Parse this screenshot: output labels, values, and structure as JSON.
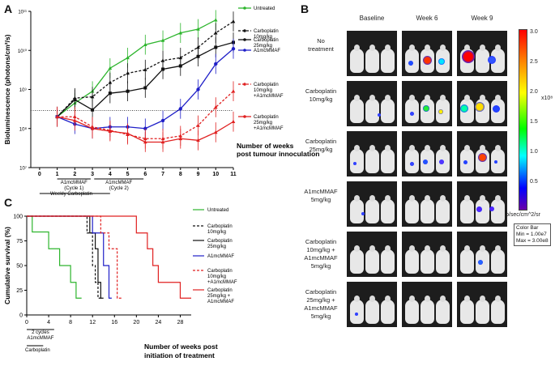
{
  "panels": {
    "a": "A",
    "b": "B",
    "c": "C"
  },
  "chart_data": [
    {
      "type": "line",
      "title": "",
      "xlabel": "Number of weeks\npost tumour innoculation",
      "ylabel": "Bioluminescence (photons/cm²/s)",
      "yscale": "log",
      "ylim": [
        10000000,
        100000000000
      ],
      "yticks": [
        "10⁷",
        "10⁸",
        "10⁹",
        "10¹⁰",
        "10¹¹"
      ],
      "x_ticks": [
        "0",
        "1",
        "2",
        "3",
        "4",
        "5",
        "6",
        "7",
        "8",
        "9",
        "10",
        "11"
      ],
      "dotted_reference_y": 290000000,
      "annotations": {
        "cycle1": "A1mcMMAF\n(Cycle 1)",
        "cycle2": "A1mcMMAF\n(Cycle 2)",
        "weekly": "Weekly Carboplatin"
      },
      "series": [
        {
          "name": "Untreated",
          "color": "#2db52d",
          "dash": "solid",
          "marker": "tri",
          "x": [
            1,
            2,
            3,
            4,
            5,
            6,
            7,
            8,
            9,
            10
          ],
          "values": [
            200000000,
            450000000,
            900000000,
            3500000000,
            6500000000,
            14000000000,
            18000000000,
            28000000000,
            35000000000,
            60000000000
          ]
        },
        {
          "name": "Carboplatin\n10mg/kg",
          "color": "#111111",
          "dash": "dash",
          "marker": "tri",
          "x": [
            1,
            2,
            3,
            4,
            5,
            6,
            7,
            8,
            9,
            10,
            11
          ],
          "values": [
            200000000,
            600000000,
            650000000,
            1500000000,
            2600000000,
            3200000000,
            5500000000,
            6500000000,
            12000000000,
            28000000000,
            55000000000
          ]
        },
        {
          "name": "Carboplatin\n25mg/kg",
          "color": "#111111",
          "dash": "solid",
          "marker": "sq",
          "x": [
            1,
            2,
            3,
            4,
            5,
            6,
            7,
            8,
            9,
            10,
            11
          ],
          "values": [
            200000000,
            550000000,
            300000000,
            800000000,
            900000000,
            1100000000,
            3300000000,
            4000000000,
            7000000000,
            12000000000,
            16000000000
          ]
        },
        {
          "name": "A1mcMMAF",
          "color": "#1f1fc8",
          "dash": "solid",
          "marker": "circ",
          "x": [
            1,
            2,
            3,
            4,
            5,
            6,
            7,
            8,
            9,
            10,
            11
          ],
          "values": [
            200000000,
            130000000,
            100000000,
            110000000,
            110000000,
            100000000,
            160000000,
            320000000,
            1000000000,
            4500000000,
            11000000000
          ]
        },
        {
          "name": "Carboplatin\n10mg/kg\n+A1mcMMAF",
          "color": "#e02020",
          "dash": "dash",
          "marker": "tri",
          "x": [
            1,
            2,
            3,
            4,
            5,
            6,
            7,
            8,
            9,
            10,
            11
          ],
          "values": [
            200000000,
            200000000,
            110000000,
            90000000,
            70000000,
            55000000,
            55000000,
            65000000,
            120000000,
            350000000,
            900000000
          ]
        },
        {
          "name": "Carboplatin\n25mg/kg\n+A1mcMMAF",
          "color": "#e02020",
          "dash": "solid",
          "marker": "tri",
          "x": [
            1,
            2,
            3,
            4,
            5,
            6,
            7,
            8,
            9,
            10,
            11
          ],
          "values": [
            200000000,
            160000000,
            100000000,
            85000000,
            75000000,
            45000000,
            45000000,
            55000000,
            50000000,
            80000000,
            150000000
          ]
        }
      ]
    },
    {
      "type": "line",
      "subtype": "kaplan-meier",
      "title": "",
      "xlabel": "Number of weeks post\ninitiation of treatment",
      "ylabel": "Cumulative survival (%)",
      "xlim": [
        0,
        30
      ],
      "ylim": [
        0,
        100
      ],
      "x_ticks": [
        "0",
        "4",
        "8",
        "12",
        "16",
        "20",
        "24",
        "28"
      ],
      "y_ticks": [
        "0",
        "25",
        "50",
        "75",
        "100"
      ],
      "annotations": {
        "cycles": "2 cycles\nA1mcMMAF",
        "carbo": "Carboplatin"
      },
      "series": [
        {
          "name": "Untreated",
          "color": "#2db52d",
          "dash": "solid",
          "x": [
            0,
            1,
            1,
            4,
            4,
            6,
            6,
            8,
            8,
            9,
            9,
            10
          ],
          "values": [
            100,
            100,
            84,
            84,
            67,
            67,
            50,
            50,
            33,
            33,
            17,
            17
          ]
        },
        {
          "name": "Carboplatin\n10mg/kg",
          "color": "#111111",
          "dash": "dash",
          "x": [
            0,
            11,
            11,
            12,
            12,
            12.5,
            12.5,
            13,
            13,
            13.5
          ],
          "values": [
            100,
            100,
            83,
            83,
            50,
            50,
            33,
            33,
            17,
            17
          ]
        },
        {
          "name": "Carboplatin\n25mg/kg",
          "color": "#111111",
          "dash": "solid",
          "x": [
            0,
            11.5,
            11.5,
            12.5,
            12.5,
            13,
            13,
            13.5,
            13.5,
            14
          ],
          "values": [
            100,
            100,
            83,
            83,
            67,
            67,
            33,
            33,
            17,
            17
          ]
        },
        {
          "name": "A1mcMMAF",
          "color": "#1f1fc8",
          "dash": "solid",
          "x": [
            0,
            12,
            12,
            14,
            14,
            15,
            15,
            15.5
          ],
          "values": [
            100,
            100,
            83,
            83,
            50,
            50,
            17,
            17
          ]
        },
        {
          "name": "Carboplatin\n10mg/kg\n+A1mcMMAF",
          "color": "#e02020",
          "dash": "dash",
          "x": [
            0,
            13.5,
            13.5,
            15,
            15,
            16.5,
            16.5,
            17.5
          ],
          "values": [
            100,
            100,
            83,
            83,
            67,
            67,
            17,
            17
          ]
        },
        {
          "name": "Carboplatin\n25mg/kg +\nA1mcMMAF",
          "color": "#e02020",
          "dash": "solid",
          "x": [
            0,
            20,
            20,
            22,
            22,
            23,
            23,
            24,
            24,
            28,
            28,
            30
          ],
          "values": [
            100,
            100,
            83,
            83,
            67,
            67,
            50,
            50,
            33,
            33,
            17,
            17
          ]
        }
      ]
    }
  ],
  "imaging": {
    "columns": [
      "Baseline",
      "Week 6",
      "Week 9"
    ],
    "rows": [
      "No\ntreatment",
      "Carboplatin\n10mg/kg",
      "Carboplatin\n25mg/kg",
      "A1mcMMAF\n5mg/kg",
      "Carboplatin\n10mg/kg +\nA1mcMMAF\n5mg/kg",
      "Carboplatin\n25mg/kg +\nA1mcMMAF\n5mg/kg"
    ],
    "colorbar": {
      "ticks": [
        "3.0",
        "2.5",
        "2.0",
        "1.5",
        "1.0",
        "0.5"
      ],
      "exponent": "x10⁸",
      "unit": "p/sec/cm^2/sr",
      "info": "Color Bar\nMin = 1.00e7\nMax = 3.00e8"
    }
  }
}
